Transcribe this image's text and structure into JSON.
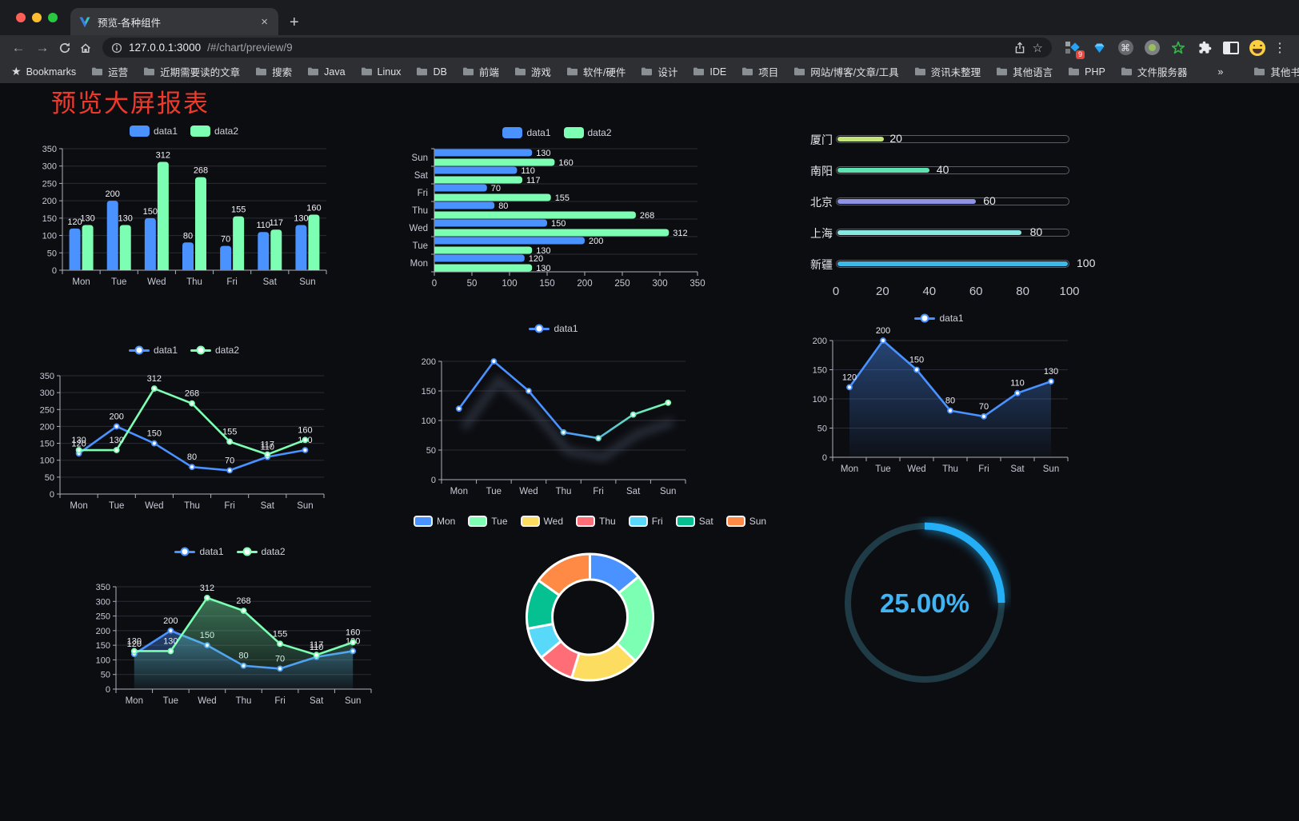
{
  "browser": {
    "tab": {
      "title": "预览-各种组件",
      "close_glyph": "×",
      "favicon": "v-logo"
    },
    "new_tab_glyph": "+",
    "nav_icons": [
      "back-arrow",
      "forward-arrow",
      "reload",
      "home"
    ],
    "address": {
      "host": "127.0.0.1:3000",
      "path": "/#/chart/preview/9",
      "icons": [
        "page-info",
        "share",
        "star-outline"
      ]
    },
    "extensions": [
      {
        "name": "script-manager",
        "badge": "9"
      },
      {
        "name": "gem"
      },
      {
        "name": "command"
      },
      {
        "name": "recorder-dot"
      },
      {
        "name": "green-star"
      },
      {
        "name": "puzzle"
      },
      {
        "name": "split-view"
      },
      {
        "name": "emoji-face"
      }
    ],
    "menu_glyph": "⋮",
    "traffic_lights": [
      "#ff5f57",
      "#febc2e",
      "#28c840"
    ]
  },
  "bookmarks_bar": {
    "lead": "Bookmarks",
    "folders": [
      "运营",
      "近期需要读的文章",
      "搜索",
      "Java",
      "Linux",
      "DB",
      "前端",
      "游戏",
      "软件/硬件",
      "设计",
      "IDE",
      "项目",
      "网站/博客/文章/工具",
      "资讯未整理",
      "其他语言",
      "PHP",
      "文件服务器"
    ],
    "overflow_glyph": "»",
    "other": "其他书签"
  },
  "page": {
    "title": "预览大屏报表",
    "title_color": "#f0392b",
    "background": "#0c0d11"
  },
  "chart_data": [
    {
      "id": "bar-grouped",
      "type": "bar",
      "categories": [
        "Mon",
        "Tue",
        "Wed",
        "Thu",
        "Fri",
        "Sat",
        "Sun"
      ],
      "series": [
        {
          "name": "data1",
          "color": "#4992ff",
          "values": [
            120,
            200,
            150,
            80,
            70,
            110,
            130
          ]
        },
        {
          "name": "data2",
          "color": "#7cffb2",
          "values": [
            130,
            130,
            312,
            268,
            155,
            117,
            160
          ]
        }
      ],
      "ylim": [
        0,
        350
      ],
      "yticks": [
        0,
        50,
        100,
        150,
        200,
        250,
        300,
        350
      ],
      "value_labels": true,
      "legend_position": "top",
      "grid": true
    },
    {
      "id": "bar-horizontal",
      "type": "bar-horizontal",
      "categories": [
        "Mon",
        "Tue",
        "Wed",
        "Thu",
        "Fri",
        "Sat",
        "Sun"
      ],
      "series": [
        {
          "name": "data1",
          "color": "#4992ff",
          "values": [
            120,
            200,
            150,
            80,
            70,
            110,
            130
          ]
        },
        {
          "name": "data2",
          "color": "#7cffb2",
          "values": [
            130,
            130,
            312,
            268,
            155,
            117,
            160
          ]
        }
      ],
      "xlim": [
        0,
        350
      ],
      "xticks": [
        0,
        50,
        100,
        150,
        200,
        250,
        300,
        350
      ],
      "value_labels": true,
      "legend_position": "top",
      "grid": true
    },
    {
      "id": "progress-bars",
      "type": "progress",
      "max": 100,
      "xticks": [
        0,
        20,
        40,
        60,
        80,
        100
      ],
      "items": [
        {
          "label": "厦门",
          "value": 20,
          "color": "#c5e478"
        },
        {
          "label": "南阳",
          "value": 40,
          "color": "#5fe2b2"
        },
        {
          "label": "北京",
          "value": 60,
          "color": "#8f93e8"
        },
        {
          "label": "上海",
          "value": 80,
          "color": "#8ae8e2"
        },
        {
          "label": "新疆",
          "value": 100,
          "color": "#3cb9e8"
        }
      ]
    },
    {
      "id": "line-two-series",
      "type": "line",
      "categories": [
        "Mon",
        "Tue",
        "Wed",
        "Thu",
        "Fri",
        "Sat",
        "Sun"
      ],
      "series": [
        {
          "name": "data1",
          "color": "#4992ff",
          "values": [
            120,
            200,
            150,
            80,
            70,
            110,
            130
          ]
        },
        {
          "name": "data2",
          "color": "#7cffb2",
          "values": [
            130,
            130,
            312,
            268,
            155,
            117,
            160
          ]
        }
      ],
      "ylim": [
        0,
        350
      ],
      "yticks": [
        0,
        50,
        100,
        150,
        200,
        250,
        300,
        350
      ],
      "value_labels": true,
      "legend_position": "top",
      "grid": true
    },
    {
      "id": "line-gradient",
      "type": "line",
      "categories": [
        "Mon",
        "Tue",
        "Wed",
        "Thu",
        "Fri",
        "Sat",
        "Sun"
      ],
      "series": [
        {
          "name": "data1",
          "color": "#4992ff",
          "values": [
            120,
            200,
            150,
            80,
            70,
            110,
            130
          ],
          "gradient_stops": [
            [
              0,
              "#4992ff"
            ],
            [
              0.5,
              "#4992ff"
            ],
            [
              0.78,
              "#5ed2c5"
            ],
            [
              1,
              "#7cffb2"
            ]
          ],
          "marker_colors": [
            "#4992ff",
            "#4992ff",
            "#4992ff",
            "#53b4d8",
            "#5ed2c5",
            "#6fe9b6",
            "#7cffb2"
          ]
        }
      ],
      "ylim": [
        0,
        200
      ],
      "yticks": [
        0,
        50,
        100,
        150,
        200
      ],
      "value_labels": false,
      "shadow": true,
      "legend_position": "top",
      "grid": true
    },
    {
      "id": "line-area-single",
      "type": "line",
      "categories": [
        "Mon",
        "Tue",
        "Wed",
        "Thu",
        "Fri",
        "Sat",
        "Sun"
      ],
      "series": [
        {
          "name": "data1",
          "color": "#4992ff",
          "values": [
            120,
            200,
            150,
            80,
            70,
            110,
            130
          ],
          "area": true
        }
      ],
      "ylim": [
        0,
        200
      ],
      "yticks": [
        0,
        50,
        100,
        150,
        200
      ],
      "value_labels": true,
      "legend_position": "top",
      "grid": true
    },
    {
      "id": "line-area-double",
      "type": "line",
      "categories": [
        "Mon",
        "Tue",
        "Wed",
        "Thu",
        "Fri",
        "Sat",
        "Sun"
      ],
      "series": [
        {
          "name": "data1",
          "color": "#4992ff",
          "values": [
            120,
            200,
            150,
            80,
            70,
            110,
            130
          ],
          "area": true
        },
        {
          "name": "data2",
          "color": "#7cffb2",
          "values": [
            130,
            130,
            312,
            268,
            155,
            117,
            160
          ],
          "area": true
        }
      ],
      "ylim": [
        0,
        350
      ],
      "yticks": [
        0,
        50,
        100,
        150,
        200,
        250,
        300,
        350
      ],
      "value_labels": true,
      "legend_position": "top",
      "grid": true
    },
    {
      "id": "donut",
      "type": "pie",
      "inner_ratio": 0.6,
      "categories": [
        "Mon",
        "Tue",
        "Wed",
        "Thu",
        "Fri",
        "Sat",
        "Sun"
      ],
      "values": [
        120,
        200,
        150,
        80,
        70,
        110,
        130
      ],
      "colors": [
        "#4992ff",
        "#7cffb2",
        "#fddd60",
        "#ff6e76",
        "#58d9f9",
        "#05c091",
        "#ff8a45"
      ],
      "legend_position": "top"
    },
    {
      "id": "gauge",
      "type": "gauge",
      "value": 25,
      "label": "25.00%",
      "color": "#23aef5",
      "track_color": "#1e3b46",
      "text_color": "#41b4f4"
    }
  ]
}
